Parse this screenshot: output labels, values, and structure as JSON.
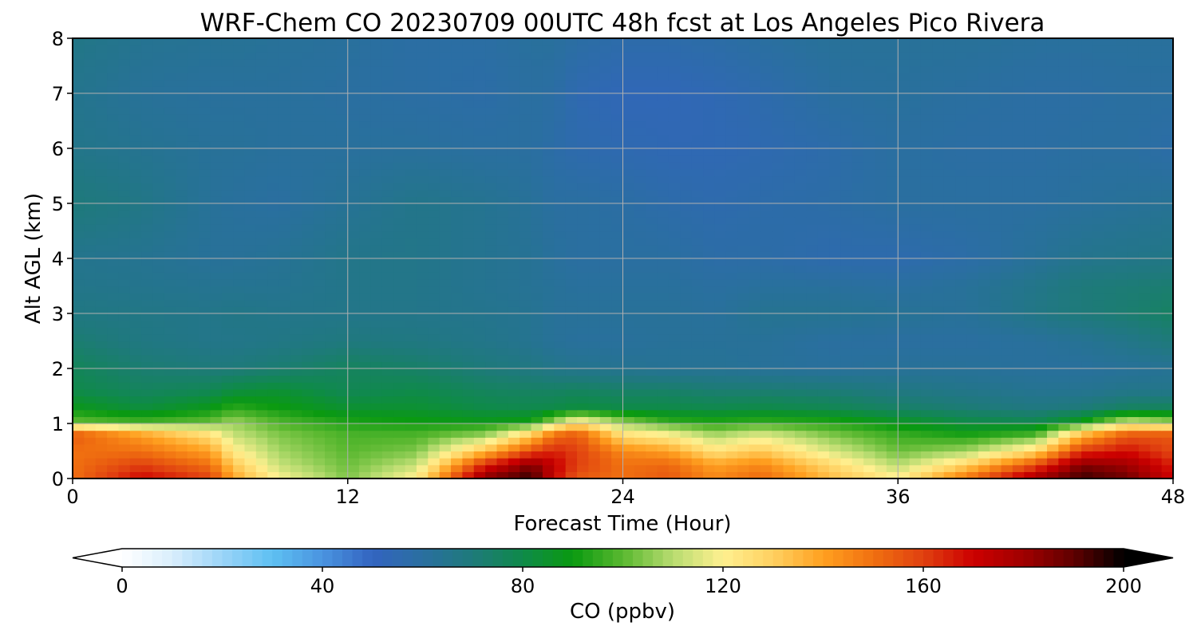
{
  "chart_data": {
    "type": "heatmap",
    "title": "WRF-Chem CO  20230709 00UTC 48h fcst at Los Angeles Pico Rivera",
    "xlabel": "Forecast Time (Hour)",
    "ylabel": "Alt AGL (km)",
    "xlim": [
      0,
      48
    ],
    "ylim": [
      0,
      8
    ],
    "x_ticks": [
      "0",
      "12",
      "24",
      "36",
      "48"
    ],
    "y_ticks": [
      "0",
      "1",
      "2",
      "3",
      "4",
      "5",
      "6",
      "7",
      "8"
    ],
    "grid": true,
    "colorbar": {
      "label": "CO  (ppbv)",
      "range": [
        0,
        200
      ],
      "ticks": [
        "0",
        "40",
        "80",
        "120",
        "160",
        "200"
      ],
      "extend": "both",
      "colors": [
        "#ffffff",
        "#d9eefc",
        "#9bd4f7",
        "#5ec0f2",
        "#4a94e0",
        "#3364c0",
        "#2a6fa0",
        "#1e7a7a",
        "#0f8a4a",
        "#0a9a10",
        "#5ab830",
        "#b8dc70",
        "#fff090",
        "#ffd060",
        "#ffa020",
        "#f07010",
        "#e04010",
        "#cc0000",
        "#a00000",
        "#600000",
        "#000000"
      ]
    },
    "x": [
      0,
      3,
      6,
      7,
      9,
      12,
      15,
      18,
      20,
      21,
      22,
      24,
      26,
      28,
      30,
      33,
      36,
      39,
      42,
      44,
      46,
      48
    ],
    "y": [
      0,
      0.25,
      0.5,
      0.8,
      1.05,
      1.3,
      1.6,
      2,
      2.5,
      3,
      3.5,
      4,
      5,
      6,
      7,
      8
    ],
    "values": [
      [
        150,
        170,
        160,
        140,
        120,
        104,
        122,
        185,
        196,
        170,
        155,
        150,
        155,
        145,
        152,
        135,
        122,
        150,
        180,
        195,
        188,
        170
      ],
      [
        150,
        160,
        150,
        132,
        112,
        102,
        112,
        165,
        185,
        172,
        160,
        150,
        152,
        140,
        145,
        128,
        110,
        130,
        158,
        185,
        180,
        165
      ],
      [
        150,
        150,
        140,
        122,
        108,
        100,
        104,
        135,
        158,
        165,
        160,
        145,
        140,
        125,
        132,
        115,
        102,
        108,
        128,
        162,
        168,
        158
      ],
      [
        155,
        140,
        125,
        112,
        104,
        98,
        98,
        106,
        130,
        150,
        155,
        125,
        120,
        108,
        115,
        104,
        96,
        92,
        98,
        135,
        155,
        155
      ],
      [
        100,
        96,
        100,
        106,
        98,
        92,
        90,
        88,
        90,
        105,
        120,
        104,
        94,
        92,
        94,
        92,
        86,
        80,
        78,
        88,
        110,
        104
      ],
      [
        88,
        82,
        88,
        94,
        90,
        84,
        84,
        80,
        79,
        80,
        82,
        80,
        80,
        79,
        80,
        78,
        74,
        71,
        68,
        70,
        75,
        76
      ],
      [
        80,
        76,
        78,
        82,
        84,
        78,
        80,
        76,
        75,
        75,
        76,
        74,
        74,
        72,
        72,
        71,
        68,
        66,
        64,
        64,
        66,
        66
      ],
      [
        77,
        72,
        70,
        70,
        72,
        76,
        74,
        70,
        68,
        66,
        65,
        64,
        63,
        63,
        62,
        61,
        62,
        62,
        61,
        61,
        62,
        63
      ],
      [
        72,
        68,
        66,
        66,
        67,
        69,
        68,
        66,
        64,
        62,
        61,
        61,
        62,
        62,
        62,
        60,
        60,
        60,
        61,
        63,
        66,
        70
      ],
      [
        68,
        67,
        66,
        67,
        66,
        66,
        66,
        65,
        64,
        62,
        62,
        62,
        62,
        61,
        64,
        64,
        63,
        62,
        67,
        70,
        72,
        75
      ],
      [
        66,
        65,
        64,
        64,
        64,
        66,
        66,
        64,
        63,
        62,
        61,
        61,
        61,
        60,
        61,
        61,
        60,
        62,
        66,
        70,
        71,
        72
      ],
      [
        65,
        64,
        62,
        62,
        63,
        66,
        66,
        64,
        63,
        61,
        60,
        60,
        60,
        58,
        58,
        56,
        56,
        58,
        62,
        65,
        66,
        67
      ],
      [
        70,
        67,
        62,
        61,
        60,
        63,
        66,
        64,
        62,
        60,
        60,
        59,
        57,
        56,
        57,
        58,
        60,
        60,
        60,
        61,
        62,
        63
      ],
      [
        66,
        64,
        62,
        62,
        61,
        61,
        61,
        60,
        60,
        58,
        56,
        55,
        54,
        54,
        55,
        57,
        60,
        59,
        59,
        60,
        60,
        58
      ],
      [
        65,
        62,
        61,
        61,
        61,
        60,
        59,
        58,
        60,
        59,
        55,
        53,
        53,
        54,
        56,
        60,
        61,
        60,
        59,
        59,
        60,
        60
      ],
      [
        67,
        64,
        63,
        63,
        62,
        61,
        59,
        59,
        61,
        61,
        59,
        57,
        57,
        58,
        60,
        62,
        62,
        62,
        61,
        61,
        61,
        61
      ]
    ]
  }
}
